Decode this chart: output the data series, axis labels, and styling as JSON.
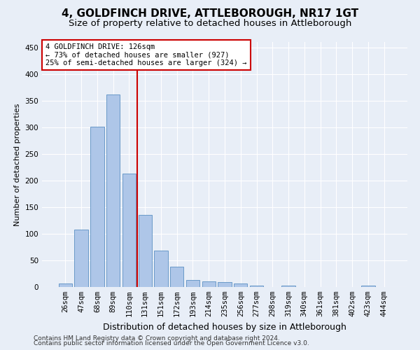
{
  "title": "4, GOLDFINCH DRIVE, ATTLEBOROUGH, NR17 1GT",
  "subtitle": "Size of property relative to detached houses in Attleborough",
  "xlabel": "Distribution of detached houses by size in Attleborough",
  "ylabel": "Number of detached properties",
  "footnote1": "Contains HM Land Registry data © Crown copyright and database right 2024.",
  "footnote2": "Contains public sector information licensed under the Open Government Licence v3.0.",
  "categories": [
    "26sqm",
    "47sqm",
    "68sqm",
    "89sqm",
    "110sqm",
    "131sqm",
    "151sqm",
    "172sqm",
    "193sqm",
    "214sqm",
    "235sqm",
    "256sqm",
    "277sqm",
    "298sqm",
    "319sqm",
    "340sqm",
    "361sqm",
    "381sqm",
    "402sqm",
    "423sqm",
    "444sqm"
  ],
  "values": [
    7,
    108,
    301,
    362,
    213,
    136,
    68,
    38,
    13,
    10,
    9,
    6,
    2,
    0,
    2,
    0,
    0,
    0,
    0,
    3,
    0
  ],
  "bar_color": "#aec6e8",
  "bar_edge_color": "#5a8fc2",
  "vline_x": 4.5,
  "vline_color": "#cc0000",
  "annotation_line1": "4 GOLDFINCH DRIVE: 126sqm",
  "annotation_line2": "← 73% of detached houses are smaller (927)",
  "annotation_line3": "25% of semi-detached houses are larger (324) →",
  "annotation_box_color": "#ffffff",
  "annotation_edge_color": "#cc0000",
  "ylim": [
    0,
    460
  ],
  "yticks": [
    0,
    50,
    100,
    150,
    200,
    250,
    300,
    350,
    400,
    450
  ],
  "bg_color": "#e8eef7",
  "plot_bg_color": "#e8eef7",
  "title_fontsize": 11,
  "subtitle_fontsize": 9.5,
  "xlabel_fontsize": 9,
  "ylabel_fontsize": 8,
  "tick_fontsize": 7.5,
  "annotation_fontsize": 7.5,
  "footnote_fontsize": 6.5
}
